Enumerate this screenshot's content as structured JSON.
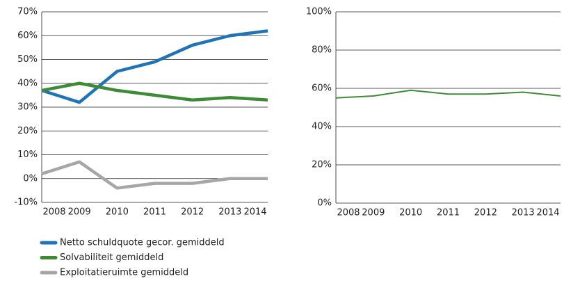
{
  "chart_data": [
    {
      "type": "line",
      "categories": [
        "2008",
        "2009",
        "2010",
        "2011",
        "2012",
        "2013",
        "2014"
      ],
      "series": [
        {
          "name": "Netto schuldquote gecor. gemiddeld",
          "color": "#1f73b7",
          "values": [
            37,
            32,
            45,
            49,
            56,
            60,
            62
          ]
        },
        {
          "name": "Solvabiliteit gemiddeld",
          "color": "#3d8c35",
          "values": [
            37,
            40,
            37,
            35,
            33,
            34,
            33
          ]
        },
        {
          "name": "Exploitatieruimte gemiddeld",
          "color": "#a6a6a6",
          "values": [
            2,
            7,
            -4,
            -2,
            -2,
            0,
            0
          ]
        }
      ],
      "ylim": [
        -10,
        70
      ],
      "yticks": [
        {
          "value": -10,
          "label": "-10%"
        },
        {
          "value": 0,
          "label": "0%"
        },
        {
          "value": 10,
          "label": "10%"
        },
        {
          "value": 20,
          "label": "20%"
        },
        {
          "value": 30,
          "label": "30%"
        },
        {
          "value": 40,
          "label": "40%"
        },
        {
          "value": 50,
          "label": "50%"
        },
        {
          "value": 60,
          "label": "60%"
        },
        {
          "value": 70,
          "label": "70%"
        }
      ],
      "grid": true,
      "legend": "bottom"
    },
    {
      "type": "line",
      "categories": [
        "2008",
        "2009",
        "2010",
        "2011",
        "2012",
        "2013",
        "2014"
      ],
      "series": [
        {
          "color": "#3d8c35",
          "values": [
            55,
            56,
            59,
            57,
            57,
            58,
            56
          ]
        }
      ],
      "ylim": [
        0,
        100
      ],
      "yticks": [
        {
          "value": 0,
          "label": "0%"
        },
        {
          "value": 20,
          "label": "20%"
        },
        {
          "value": 40,
          "label": "40%"
        },
        {
          "value": 60,
          "label": "60%"
        },
        {
          "value": 80,
          "label": "80%"
        },
        {
          "value": 100,
          "label": "100%"
        }
      ],
      "grid": true
    }
  ]
}
